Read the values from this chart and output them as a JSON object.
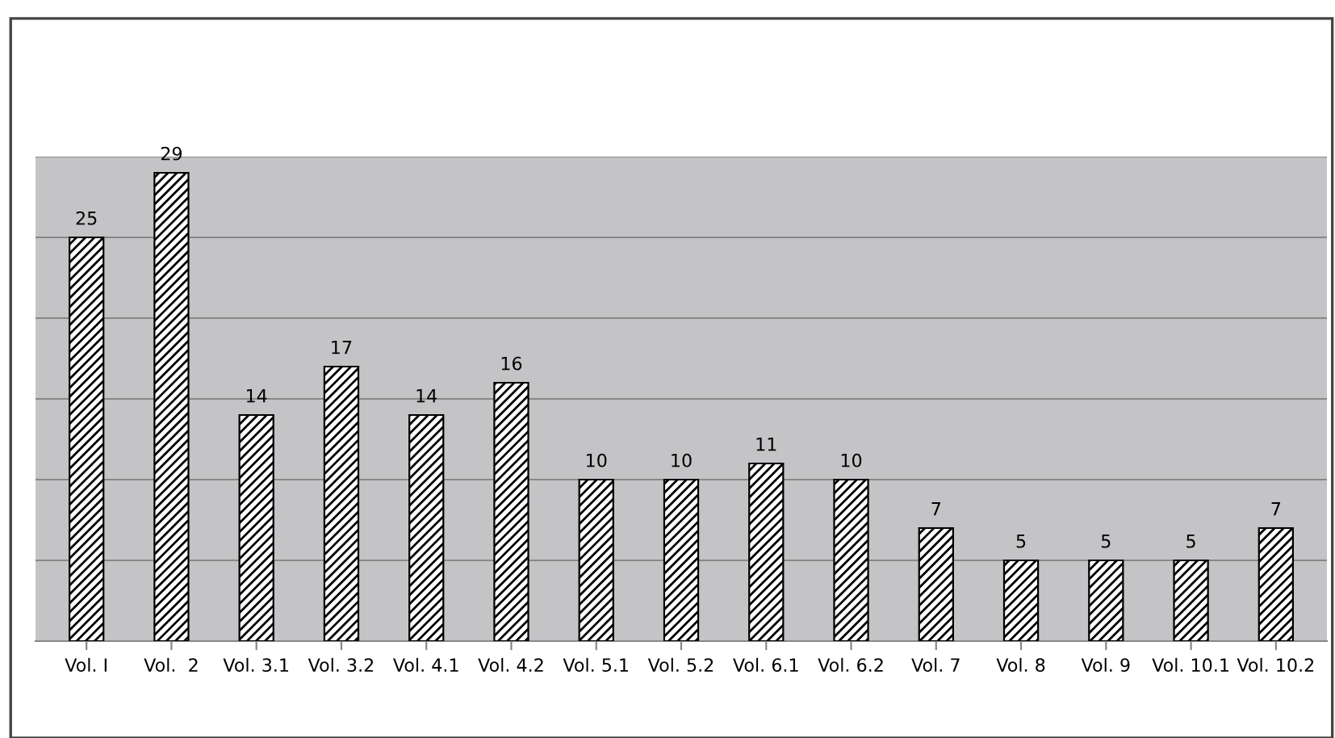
{
  "chart_data": {
    "type": "bar",
    "categories": [
      "Vol. I",
      "Vol.  2",
      "Vol. 3.1",
      "Vol. 3.2",
      "Vol. 4.1",
      "Vol. 4.2",
      "Vol. 5.1",
      "Vol. 5.2",
      "Vol. 6.1",
      "Vol. 6.2",
      "Vol. 7",
      "Vol. 8",
      "Vol. 9",
      "Vol. 10.1",
      "Vol. 10.2"
    ],
    "values": [
      25,
      29,
      14,
      17,
      14,
      16,
      10,
      10,
      11,
      10,
      7,
      5,
      5,
      5,
      7
    ],
    "color": "#000000",
    "ylim": [
      0,
      30
    ],
    "yticks": [
      {
        "value": 0,
        "label": null
      },
      {
        "value": 5,
        "label": null
      },
      {
        "value": 10,
        "label": null
      },
      {
        "value": 15,
        "label": null
      },
      {
        "value": 20,
        "label": null
      },
      {
        "value": 25,
        "label": null
      },
      {
        "value": 30,
        "label": null
      }
    ],
    "tick_labels": "x",
    "grid": "y",
    "data_labels": true
  }
}
